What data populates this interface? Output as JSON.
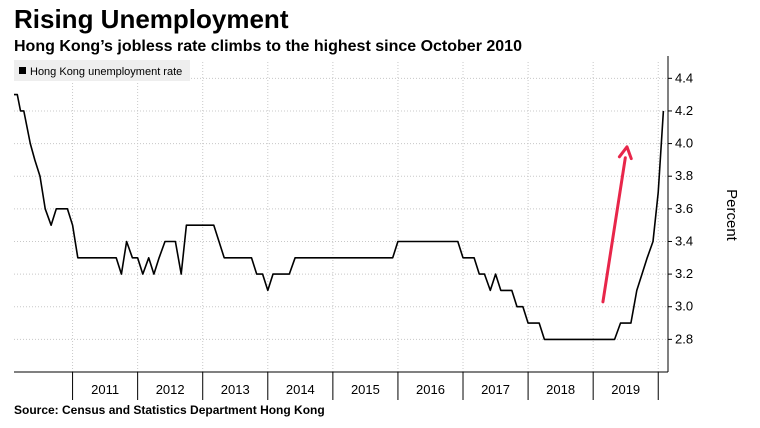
{
  "header": {
    "title": "Rising Unemployment",
    "subtitle": "Hong Kong’s jobless rate climbs to the highest since October 2010"
  },
  "footer": {
    "source": "Source: Census and Statistics Department Hong Kong"
  },
  "colors": {
    "line": "#000000",
    "arrow": "#e8264a",
    "grid": "#c8c8c8",
    "legend_bg": "#eeeeee"
  },
  "chart_data": {
    "type": "line",
    "title": "",
    "xlabel": "",
    "ylabel": "Percent",
    "grid": true,
    "legend_position": "top-left",
    "ylim": [
      2.6,
      4.5
    ],
    "yticks": [
      2.8,
      3.0,
      3.2,
      3.4,
      3.6,
      3.8,
      4.0,
      4.2,
      4.4
    ],
    "yticks_labels": [
      "2.8",
      "3.0",
      "3.2",
      "3.4",
      "3.6",
      "3.8",
      "4.0",
      "4.2",
      "4.4"
    ],
    "xlim": [
      2010.1,
      2020.15
    ],
    "xticks": [
      {
        "label": "2011",
        "value": 2011.5
      },
      {
        "label": "2012",
        "value": 2012.5
      },
      {
        "label": "2013",
        "value": 2013.5
      },
      {
        "label": "2014",
        "value": 2014.5
      },
      {
        "label": "2015",
        "value": 2015.5
      },
      {
        "label": "2016",
        "value": 2016.5
      },
      {
        "label": "2017",
        "value": 2017.5
      },
      {
        "label": "2018",
        "value": 2018.5
      },
      {
        "label": "2019",
        "value": 2019.5
      }
    ],
    "year_boundaries": [
      2011,
      2012,
      2013,
      2014,
      2015,
      2016,
      2017,
      2018,
      2019,
      2020
    ],
    "series": [
      {
        "name": "Hong Kong unemployment rate",
        "points": [
          [
            2010.1,
            4.3
          ],
          [
            2010.15,
            4.3
          ],
          [
            2010.2,
            4.2
          ],
          [
            2010.25,
            4.2
          ],
          [
            2010.35,
            4.0
          ],
          [
            2010.42,
            3.9
          ],
          [
            2010.5,
            3.8
          ],
          [
            2010.58,
            3.6
          ],
          [
            2010.67,
            3.5
          ],
          [
            2010.75,
            3.6
          ],
          [
            2010.83,
            3.6
          ],
          [
            2010.92,
            3.6
          ],
          [
            2011.0,
            3.5
          ],
          [
            2011.08,
            3.3
          ],
          [
            2011.17,
            3.3
          ],
          [
            2011.25,
            3.3
          ],
          [
            2011.33,
            3.3
          ],
          [
            2011.42,
            3.3
          ],
          [
            2011.5,
            3.3
          ],
          [
            2011.58,
            3.3
          ],
          [
            2011.67,
            3.3
          ],
          [
            2011.75,
            3.2
          ],
          [
            2011.83,
            3.4
          ],
          [
            2011.92,
            3.3
          ],
          [
            2012.0,
            3.3
          ],
          [
            2012.08,
            3.2
          ],
          [
            2012.17,
            3.3
          ],
          [
            2012.25,
            3.2
          ],
          [
            2012.33,
            3.3
          ],
          [
            2012.42,
            3.4
          ],
          [
            2012.5,
            3.4
          ],
          [
            2012.58,
            3.4
          ],
          [
            2012.67,
            3.2
          ],
          [
            2012.75,
            3.5
          ],
          [
            2012.83,
            3.5
          ],
          [
            2012.92,
            3.5
          ],
          [
            2013.0,
            3.5
          ],
          [
            2013.08,
            3.5
          ],
          [
            2013.17,
            3.5
          ],
          [
            2013.25,
            3.4
          ],
          [
            2013.33,
            3.3
          ],
          [
            2013.42,
            3.3
          ],
          [
            2013.5,
            3.3
          ],
          [
            2013.58,
            3.3
          ],
          [
            2013.67,
            3.3
          ],
          [
            2013.75,
            3.3
          ],
          [
            2013.83,
            3.2
          ],
          [
            2013.92,
            3.2
          ],
          [
            2014.0,
            3.1
          ],
          [
            2014.08,
            3.2
          ],
          [
            2014.17,
            3.2
          ],
          [
            2014.25,
            3.2
          ],
          [
            2014.33,
            3.2
          ],
          [
            2014.42,
            3.3
          ],
          [
            2014.5,
            3.3
          ],
          [
            2015.0,
            3.3
          ],
          [
            2015.5,
            3.3
          ],
          [
            2015.92,
            3.3
          ],
          [
            2016.0,
            3.4
          ],
          [
            2016.5,
            3.4
          ],
          [
            2016.92,
            3.4
          ],
          [
            2017.0,
            3.3
          ],
          [
            2017.08,
            3.3
          ],
          [
            2017.17,
            3.3
          ],
          [
            2017.25,
            3.2
          ],
          [
            2017.33,
            3.2
          ],
          [
            2017.42,
            3.1
          ],
          [
            2017.5,
            3.2
          ],
          [
            2017.58,
            3.1
          ],
          [
            2017.67,
            3.1
          ],
          [
            2017.75,
            3.1
          ],
          [
            2017.83,
            3.0
          ],
          [
            2017.92,
            3.0
          ],
          [
            2018.0,
            2.9
          ],
          [
            2018.08,
            2.9
          ],
          [
            2018.17,
            2.9
          ],
          [
            2018.25,
            2.8
          ],
          [
            2018.5,
            2.8
          ],
          [
            2018.75,
            2.8
          ],
          [
            2019.0,
            2.8
          ],
          [
            2019.25,
            2.8
          ],
          [
            2019.33,
            2.8
          ],
          [
            2019.42,
            2.9
          ],
          [
            2019.5,
            2.9
          ],
          [
            2019.58,
            2.9
          ],
          [
            2019.67,
            3.1
          ],
          [
            2019.75,
            3.2
          ],
          [
            2019.83,
            3.3
          ],
          [
            2019.92,
            3.4
          ],
          [
            2020.0,
            3.7
          ],
          [
            2020.08,
            4.2
          ]
        ]
      }
    ],
    "annotations": [
      {
        "type": "arrow",
        "from": [
          2019.15,
          3.03
        ],
        "to": [
          2019.52,
          3.98
        ]
      }
    ]
  }
}
